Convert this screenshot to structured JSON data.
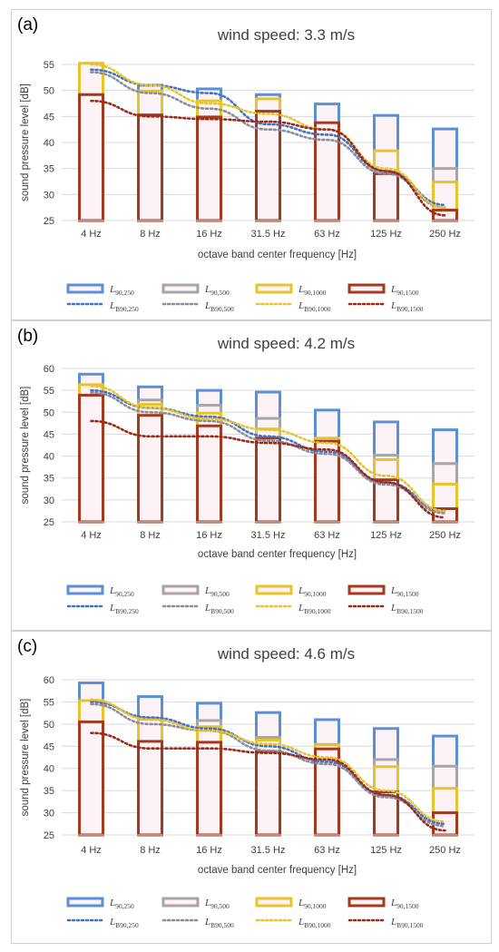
{
  "legend": {
    "items": [
      {
        "main": "L",
        "sub": "90,250"
      },
      {
        "main": "L",
        "sub": "90,500"
      },
      {
        "main": "L",
        "sub": "90,1000"
      },
      {
        "main": "L",
        "sub": "90,1500"
      },
      {
        "main": "L",
        "sub": "B90,250"
      },
      {
        "main": "L",
        "sub": "B90,500"
      },
      {
        "main": "L",
        "sub": "B90,1000"
      },
      {
        "main": "L",
        "sub": "B90,1500"
      }
    ]
  },
  "colors": {
    "L90_250": "#5b8fd6",
    "L90_500": "#a6a6a6",
    "L90_1000": "#e8c42c",
    "L90_1500": "#a33a1e",
    "bar_fill": "#fdf2f6",
    "gridline": "#d9d9d9",
    "LB90_250": "#4472c4",
    "LB90_500": "#8c8c9c",
    "LB90_1000": "#e8c42c",
    "LB90_1500": "#9c2a16"
  },
  "chart_data": [
    {
      "panel_label": "(a)",
      "type": "bar",
      "title": "wind speed: 3.3 m/s",
      "xlabel": "octave band center frequency [Hz]",
      "ylabel": "sound pressure level [dB]",
      "ylim": [
        25,
        55
      ],
      "yticks": [
        "25",
        "30",
        "35",
        "40",
        "45",
        "50",
        "55"
      ],
      "categories": [
        "4 Hz",
        "8 Hz",
        "16 Hz",
        "31.5 Hz",
        "63 Hz",
        "125 Hz",
        "250 Hz"
      ],
      "grid": true,
      "legend_position": "bottom",
      "bars_overlaid": true,
      "series": [
        {
          "kind": "bar",
          "color_key": "L90_250",
          "values": [
            55.2,
            51.0,
            50.3,
            49.2,
            47.4,
            45.2,
            42.6
          ]
        },
        {
          "kind": "bar",
          "color_key": "L90_500",
          "values": [
            51.0,
            48.7,
            47.3,
            45.6,
            43.4,
            35.0,
            35.0
          ]
        },
        {
          "kind": "bar",
          "color_key": "L90_1000",
          "values": [
            55.2,
            49.9,
            48.0,
            48.4,
            43.2,
            38.4,
            32.4
          ]
        },
        {
          "kind": "bar",
          "color_key": "L90_1500",
          "values": [
            49.2,
            45.3,
            44.9,
            46.0,
            43.8,
            34.0,
            27.0
          ]
        },
        {
          "kind": "line",
          "color_key": "LB90_250",
          "values": [
            54.0,
            51.0,
            49.5,
            43.5,
            41.5,
            34.5,
            28.0
          ]
        },
        {
          "kind": "line",
          "color_key": "LB90_500",
          "values": [
            53.5,
            49.5,
            46.5,
            42.5,
            40.5,
            34.0,
            27.5
          ]
        },
        {
          "kind": "line",
          "color_key": "LB90_1000",
          "values": [
            55.0,
            51.0,
            47.5,
            45.5,
            42.5,
            35.0,
            27.5
          ]
        },
        {
          "kind": "line",
          "color_key": "LB90_1500",
          "values": [
            48.0,
            45.0,
            44.5,
            44.0,
            42.5,
            34.5,
            26.0
          ]
        }
      ]
    },
    {
      "panel_label": "(b)",
      "type": "bar",
      "title": "wind speed: 4.2 m/s",
      "xlabel": "octave band center frequency [Hz]",
      "ylabel": "sound pressure level [dB]",
      "ylim": [
        25,
        60
      ],
      "yticks": [
        "25",
        "30",
        "35",
        "40",
        "45",
        "50",
        "55",
        "60"
      ],
      "categories": [
        "4 Hz",
        "8 Hz",
        "16 Hz",
        "31.5 Hz",
        "63 Hz",
        "125 Hz",
        "250 Hz"
      ],
      "grid": true,
      "legend_position": "bottom",
      "bars_overlaid": true,
      "series": [
        {
          "kind": "bar",
          "color_key": "L90_250",
          "values": [
            58.7,
            55.8,
            55.0,
            54.6,
            50.5,
            47.8,
            46.0
          ]
        },
        {
          "kind": "bar",
          "color_key": "L90_500",
          "values": [
            56.0,
            52.8,
            51.6,
            48.6,
            44.0,
            40.2,
            38.3
          ]
        },
        {
          "kind": "bar",
          "color_key": "L90_1000",
          "values": [
            56.3,
            51.8,
            49.8,
            46.2,
            44.1,
            39.2,
            33.6
          ]
        },
        {
          "kind": "bar",
          "color_key": "L90_1500",
          "values": [
            53.9,
            49.3,
            46.9,
            44.1,
            43.4,
            34.6,
            28.0
          ]
        },
        {
          "kind": "line",
          "color_key": "LB90_250",
          "values": [
            55.0,
            51.0,
            49.0,
            44.5,
            41.0,
            34.0,
            27.5
          ]
        },
        {
          "kind": "line",
          "color_key": "LB90_500",
          "values": [
            54.5,
            50.0,
            48.0,
            43.5,
            40.5,
            33.5,
            27.0
          ]
        },
        {
          "kind": "line",
          "color_key": "LB90_1000",
          "values": [
            56.0,
            51.0,
            48.5,
            46.0,
            43.0,
            35.5,
            27.5
          ]
        },
        {
          "kind": "line",
          "color_key": "LB90_1500",
          "values": [
            48.0,
            44.5,
            44.5,
            43.0,
            41.5,
            34.0,
            26.0
          ]
        }
      ]
    },
    {
      "panel_label": "(c)",
      "type": "bar",
      "title": "wind speed: 4.6 m/s",
      "xlabel": "octave band center frequency [Hz]",
      "ylabel": "sound pressure level [dB]",
      "ylim": [
        25,
        60
      ],
      "yticks": [
        "25",
        "30",
        "35",
        "40",
        "45",
        "50",
        "55",
        "60"
      ],
      "categories": [
        "4 Hz",
        "8 Hz",
        "16 Hz",
        "31.5 Hz",
        "63 Hz",
        "125 Hz",
        "250 Hz"
      ],
      "grid": true,
      "legend_position": "bottom",
      "bars_overlaid": true,
      "series": [
        {
          "kind": "bar",
          "color_key": "L90_250",
          "values": [
            59.3,
            56.2,
            54.7,
            52.6,
            51.0,
            49.0,
            47.3
          ]
        },
        {
          "kind": "bar",
          "color_key": "L90_500",
          "values": [
            55.2,
            51.3,
            50.8,
            47.0,
            45.4,
            42.0,
            40.5
          ]
        },
        {
          "kind": "bar",
          "color_key": "L90_1000",
          "values": [
            55.3,
            51.1,
            49.4,
            46.4,
            45.3,
            40.4,
            35.5
          ]
        },
        {
          "kind": "bar",
          "color_key": "L90_1500",
          "values": [
            50.5,
            46.1,
            45.9,
            43.8,
            44.4,
            34.7,
            30.0
          ]
        },
        {
          "kind": "line",
          "color_key": "LB90_250",
          "values": [
            55.0,
            51.5,
            49.0,
            45.0,
            41.5,
            34.0,
            27.5
          ]
        },
        {
          "kind": "line",
          "color_key": "LB90_500",
          "values": [
            54.5,
            50.0,
            48.5,
            44.0,
            41.0,
            33.5,
            27.0
          ]
        },
        {
          "kind": "line",
          "color_key": "LB90_1000",
          "values": [
            55.5,
            51.0,
            48.5,
            45.5,
            42.5,
            35.0,
            28.0
          ]
        },
        {
          "kind": "line",
          "color_key": "LB90_1500",
          "values": [
            48.0,
            44.5,
            44.5,
            43.5,
            42.0,
            34.0,
            26.0
          ]
        }
      ]
    }
  ]
}
